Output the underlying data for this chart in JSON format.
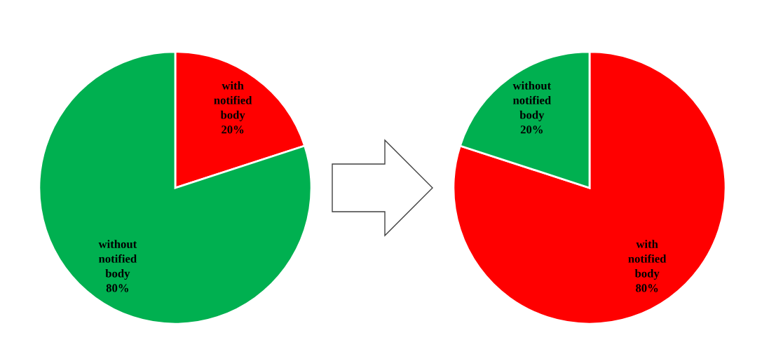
{
  "chart_data": [
    {
      "type": "pie",
      "categories": [
        "with\nnotified\nbody",
        "without\nnotified\nbody"
      ],
      "values": [
        20,
        80
      ],
      "value_labels": [
        "20%",
        "80%"
      ],
      "colors": [
        "#ff0000",
        "#00b050"
      ]
    },
    {
      "type": "pie",
      "categories": [
        "with\nnotified\nbody",
        "without\nnotified\nbody"
      ],
      "values": [
        80,
        20
      ],
      "value_labels": [
        "80%",
        "20%"
      ],
      "colors": [
        "#ff0000",
        "#00b050"
      ]
    }
  ]
}
